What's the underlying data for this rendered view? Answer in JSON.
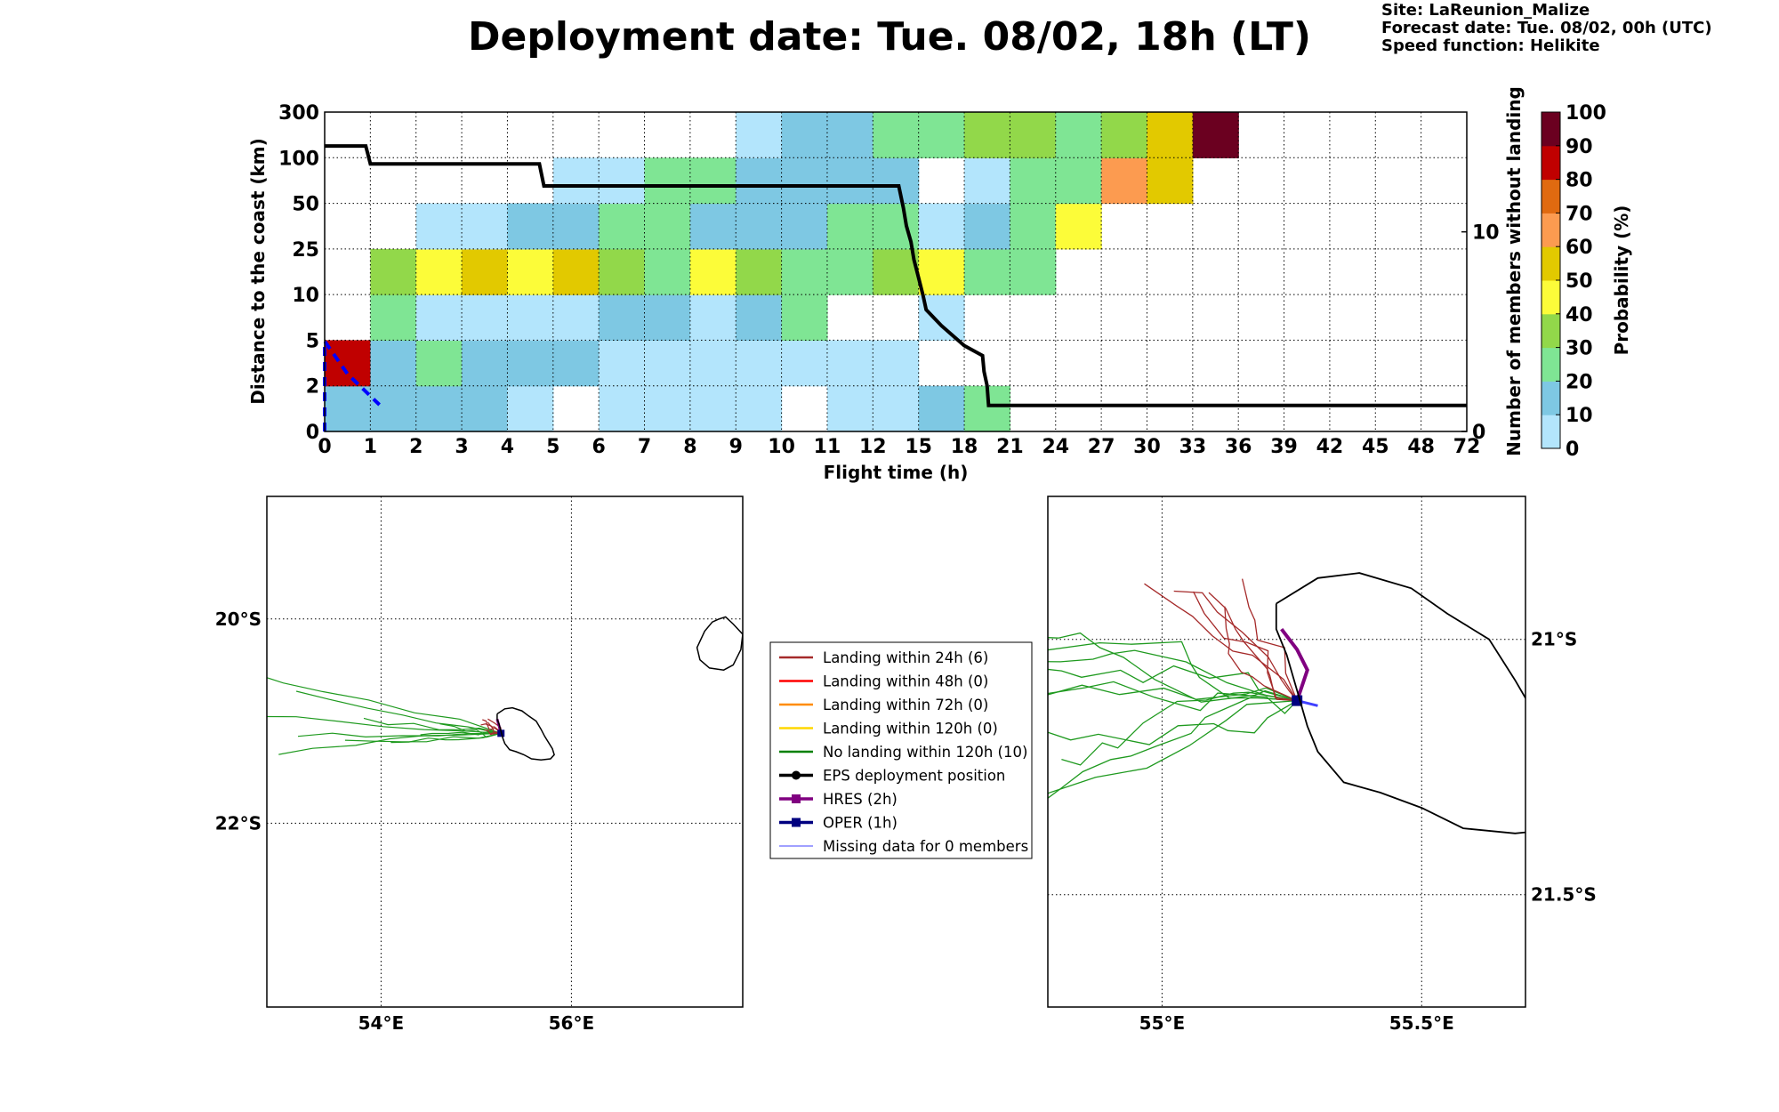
{
  "header": {
    "title": "Deployment date: Tue. 08/02, 18h (LT)",
    "site": "Site: LaReunion_Malize",
    "forecast": "Forecast date: Tue. 08/02, 00h (UTC)",
    "speed": "Speed function: Helikite"
  },
  "chart_data": [
    {
      "type": "heatmap",
      "xlabel": "Flight time (h)",
      "ylabel": "Distance to the coast (km)",
      "y2label": "Number of members without landing",
      "x_ticks": [
        "0",
        "1",
        "2",
        "3",
        "4",
        "5",
        "6",
        "7",
        "8",
        "9",
        "10",
        "11",
        "12",
        "15",
        "18",
        "21",
        "24",
        "27",
        "30",
        "33",
        "36",
        "39",
        "42",
        "45",
        "48",
        "72"
      ],
      "y_ticks": [
        "0",
        "2",
        "5",
        "10",
        "25",
        "50",
        "100",
        "300"
      ],
      "y2_ticks": [
        "0",
        "10"
      ],
      "y2_range": [
        0,
        16
      ],
      "colorbar": {
        "label": "Probability (%)",
        "ticks": [
          "0",
          "10",
          "20",
          "30",
          "40",
          "50",
          "60",
          "70",
          "80",
          "90",
          "100"
        ],
        "colors": [
          "#b3e5fc",
          "#7ec8e3",
          "#7fe594",
          "#92d84a",
          "#fcfc39",
          "#e2c900",
          "#fc9b50",
          "#e06a10",
          "#c00000",
          "#6b0020"
        ]
      },
      "grid": "dotted",
      "cells_note": "rows are distance bins from 0-2 (row 0) to 100-300 (row 6); value = probability bin index (0..9), null = empty",
      "cells": [
        [
          1,
          1,
          1,
          1,
          0,
          null,
          0,
          0,
          0,
          0,
          null,
          0,
          0,
          1,
          2,
          null,
          null,
          null,
          null,
          null,
          null,
          null,
          null,
          null,
          null
        ],
        [
          8,
          1,
          2,
          1,
          1,
          1,
          0,
          0,
          0,
          0,
          0,
          0,
          0,
          null,
          null,
          null,
          null,
          null,
          null,
          null,
          null,
          null,
          null,
          null,
          null
        ],
        [
          null,
          2,
          0,
          0,
          0,
          0,
          1,
          1,
          0,
          1,
          2,
          null,
          null,
          0,
          null,
          null,
          null,
          null,
          null,
          null,
          null,
          null,
          null,
          null,
          null
        ],
        [
          null,
          3,
          4,
          5,
          4,
          5,
          3,
          2,
          4,
          3,
          2,
          2,
          3,
          4,
          2,
          2,
          null,
          null,
          null,
          null,
          null,
          null,
          null,
          null,
          null
        ],
        [
          null,
          null,
          0,
          0,
          1,
          1,
          2,
          2,
          1,
          1,
          1,
          2,
          2,
          0,
          1,
          2,
          4,
          null,
          null,
          null,
          null,
          null,
          null,
          null,
          null
        ],
        [
          null,
          null,
          null,
          null,
          null,
          0,
          0,
          2,
          2,
          1,
          1,
          1,
          1,
          null,
          0,
          2,
          2,
          6,
          5,
          null,
          null,
          null,
          null,
          null,
          null
        ],
        [
          null,
          null,
          null,
          null,
          null,
          null,
          null,
          null,
          null,
          0,
          1,
          1,
          2,
          2,
          3,
          3,
          2,
          3,
          5,
          9,
          null,
          null,
          null,
          null,
          null
        ]
      ],
      "members_without_landing": [
        {
          "x": "0",
          "y": 14.3
        },
        {
          "x": "0.9",
          "y": 14.3
        },
        {
          "x": "1",
          "y": 13.4
        },
        {
          "x": "4.7",
          "y": 13.4
        },
        {
          "x": "4.8",
          "y": 12.3
        },
        {
          "x": "13.7",
          "y": 12.3
        },
        {
          "x": "14",
          "y": 11.2
        },
        {
          "x": "14.2",
          "y": 10.3
        },
        {
          "x": "14.5",
          "y": 9.5
        },
        {
          "x": "14.7",
          "y": 8.6
        },
        {
          "x": "15",
          "y": 7.7
        },
        {
          "x": "15.3",
          "y": 6.8
        },
        {
          "x": "15.5",
          "y": 6.1
        },
        {
          "x": "16.5",
          "y": 5.3
        },
        {
          "x": "18",
          "y": 4.3
        },
        {
          "x": "19.2",
          "y": 3.8
        },
        {
          "x": "19.3",
          "y": 3.0
        },
        {
          "x": "19.5",
          "y": 2.3
        },
        {
          "x": "19.6",
          "y": 1.3
        },
        {
          "x": "72",
          "y": 1.3
        }
      ],
      "blue_dashed": [
        {
          "x": 0,
          "y": 0
        },
        {
          "x": 0,
          "y": 4.4
        },
        {
          "x": 0.5,
          "y": 2.8
        },
        {
          "x": 1.2,
          "y": 1.3
        }
      ]
    },
    {
      "type": "map",
      "name": "overview",
      "lat_ticks": [
        "20°S",
        "22°S"
      ],
      "lon_ticks": [
        "54°E",
        "56°E"
      ],
      "lon_range": [
        52.8,
        57.8
      ],
      "lat_range": [
        -23.8,
        -18.8
      ],
      "deployment": {
        "lon": 55.26,
        "lat": -21.12
      }
    },
    {
      "type": "map",
      "name": "zoom",
      "lat_ticks": [
        "21°S",
        "21.5°S"
      ],
      "lon_ticks": [
        "55°E",
        "55.5°E"
      ],
      "lon_range": [
        54.78,
        55.7
      ],
      "lat_range": [
        -21.72,
        -20.72
      ],
      "deployment": {
        "lon": 55.26,
        "lat": -21.12
      }
    }
  ],
  "legend": {
    "items": [
      {
        "label": "Landing within 24h (6)",
        "color": "#a52a2a",
        "style": "line"
      },
      {
        "label": "Landing within 48h (0)",
        "color": "#ff0000",
        "style": "line"
      },
      {
        "label": "Landing within 72h (0)",
        "color": "#ff8c00",
        "style": "line"
      },
      {
        "label": "Landing within 120h (0)",
        "color": "#ffd700",
        "style": "line"
      },
      {
        "label": "No landing within 120h (10)",
        "color": "#008000",
        "style": "line"
      },
      {
        "label": "EPS deployment position",
        "color": "#000000",
        "style": "dot"
      },
      {
        "label": "HRES (2h)",
        "color": "#800080",
        "style": "square"
      },
      {
        "label": "OPER (1h)",
        "color": "#000080",
        "style": "square"
      },
      {
        "label": "Missing data for 0 members",
        "color": "#4040ff",
        "style": "thin"
      }
    ]
  }
}
